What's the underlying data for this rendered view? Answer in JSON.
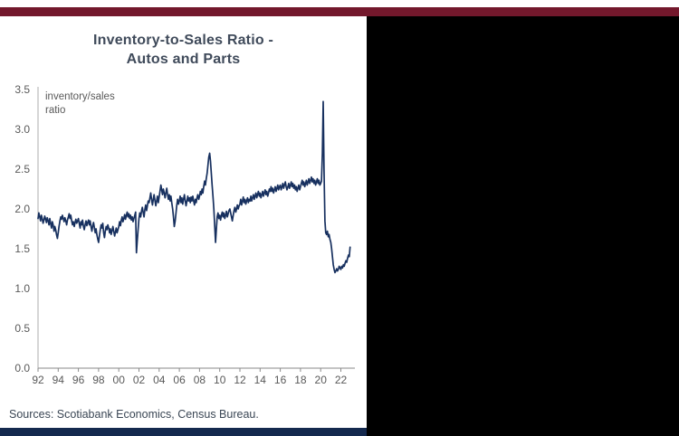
{
  "chart": {
    "title_line1": "Inventory-to-Sales Ratio -",
    "title_line2": "Autos and Parts",
    "annotation_line1": "inventory/sales",
    "annotation_line2": "ratio",
    "source": "Sources: Scotiabank Economics, Census Bureau.",
    "colors": {
      "line": "#17305F",
      "title": "#3F4A5A",
      "axis_text": "#595959",
      "y_axis_line": "#ADADAD",
      "x_axis_line": "#8A8A8A",
      "top_bar": "#73182C",
      "bottom_bar": "#14294E",
      "panel_bg": "#FFFFFF",
      "outside_bg": "#000000",
      "annotation_text": "#595959",
      "source_text": "#3A4654"
    }
  },
  "chart_data": {
    "type": "line",
    "title": "Inventory-to-Sales Ratio - Autos and Parts",
    "xlabel": "",
    "ylabel": "inventory/sales ratio",
    "legend": [],
    "grid": false,
    "ylim": [
      0,
      3.5
    ],
    "xlim": [
      1992,
      2023.3
    ],
    "y_ticks": [
      0,
      0.5,
      1,
      1.5,
      2,
      2.5,
      3,
      3.5
    ],
    "x_tick_years": [
      1992,
      1994,
      1996,
      1998,
      2000,
      2002,
      2004,
      2006,
      2008,
      2010,
      2012,
      2014,
      2016,
      2018,
      2020,
      2022
    ],
    "x_tick_labels": [
      "92",
      "94",
      "96",
      "98",
      "00",
      "02",
      "04",
      "06",
      "08",
      "10",
      "12",
      "14",
      "16",
      "18",
      "20",
      "22"
    ],
    "x_start_year": 1992,
    "x_frequency": "monthly",
    "values": [
      1.88,
      1.95,
      1.9,
      1.85,
      1.92,
      1.88,
      1.82,
      1.86,
      1.91,
      1.87,
      1.83,
      1.89,
      1.85,
      1.8,
      1.88,
      1.82,
      1.76,
      1.84,
      1.8,
      1.72,
      1.78,
      1.74,
      1.68,
      1.63,
      1.7,
      1.78,
      1.85,
      1.9,
      1.87,
      1.92,
      1.88,
      1.84,
      1.89,
      1.85,
      1.8,
      1.86,
      1.9,
      1.94,
      1.88,
      1.92,
      1.85,
      1.8,
      1.84,
      1.78,
      1.83,
      1.87,
      1.82,
      1.85,
      1.88,
      1.82,
      1.76,
      1.84,
      1.8,
      1.86,
      1.78,
      1.74,
      1.8,
      1.85,
      1.79,
      1.83,
      1.86,
      1.8,
      1.85,
      1.78,
      1.72,
      1.79,
      1.83,
      1.76,
      1.7,
      1.75,
      1.68,
      1.62,
      1.58,
      1.66,
      1.74,
      1.8,
      1.76,
      1.82,
      1.7,
      1.64,
      1.72,
      1.78,
      1.74,
      1.8,
      1.76,
      1.7,
      1.75,
      1.68,
      1.73,
      1.78,
      1.72,
      1.66,
      1.71,
      1.76,
      1.7,
      1.74,
      1.78,
      1.84,
      1.79,
      1.86,
      1.9,
      1.84,
      1.88,
      1.93,
      1.87,
      1.92,
      1.96,
      1.9,
      1.94,
      1.88,
      1.92,
      1.86,
      1.9,
      1.84,
      1.88,
      1.92,
      1.96,
      1.45,
      1.6,
      1.75,
      1.88,
      1.95,
      1.9,
      1.97,
      2.02,
      1.96,
      1.9,
      1.99,
      2.05,
      1.98,
      2.04,
      2.1,
      2.08,
      2.14,
      2.2,
      2.12,
      2.05,
      2.12,
      2.18,
      2.1,
      2.04,
      2.1,
      2.16,
      2.08,
      2.15,
      2.22,
      2.3,
      2.24,
      2.18,
      2.25,
      2.2,
      2.14,
      2.2,
      2.26,
      2.18,
      2.12,
      2.18,
      2.1,
      2.16,
      2.08,
      2.0,
      1.9,
      1.78,
      1.85,
      1.95,
      2.05,
      2.12,
      2.06,
      2.1,
      2.16,
      2.08,
      2.14,
      2.06,
      2.12,
      2.18,
      2.1,
      2.04,
      2.1,
      2.16,
      2.1,
      2.14,
      2.08,
      2.15,
      2.1,
      2.16,
      2.1,
      2.05,
      2.12,
      2.08,
      2.14,
      2.18,
      2.12,
      2.16,
      2.22,
      2.18,
      2.25,
      2.2,
      2.28,
      2.35,
      2.3,
      2.38,
      2.45,
      2.55,
      2.65,
      2.7,
      2.6,
      2.45,
      2.3,
      2.15,
      2.0,
      1.8,
      1.58,
      1.75,
      1.9,
      1.95,
      1.88,
      1.92,
      1.86,
      1.92,
      1.96,
      1.9,
      1.95,
      1.88,
      1.92,
      1.97,
      1.9,
      1.94,
      1.98,
      2.0,
      1.95,
      1.9,
      1.85,
      1.92,
      1.98,
      2.02,
      1.96,
      2.0,
      2.05,
      2.0,
      2.04,
      2.06,
      2.12,
      2.05,
      2.1,
      2.15,
      2.08,
      2.12,
      2.06,
      2.1,
      2.14,
      2.08,
      2.12,
      2.1,
      2.16,
      2.1,
      2.14,
      2.18,
      2.12,
      2.16,
      2.2,
      2.14,
      2.18,
      2.22,
      2.16,
      2.2,
      2.14,
      2.18,
      2.22,
      2.16,
      2.2,
      2.24,
      2.18,
      2.22,
      2.16,
      2.2,
      2.25,
      2.22,
      2.28,
      2.22,
      2.26,
      2.2,
      2.24,
      2.28,
      2.22,
      2.26,
      2.3,
      2.24,
      2.28,
      2.3,
      2.24,
      2.28,
      2.32,
      2.26,
      2.3,
      2.34,
      2.28,
      2.24,
      2.28,
      2.32,
      2.26,
      2.3,
      2.34,
      2.28,
      2.32,
      2.26,
      2.3,
      2.24,
      2.28,
      2.22,
      2.26,
      2.3,
      2.24,
      2.28,
      2.32,
      2.36,
      2.3,
      2.34,
      2.28,
      2.32,
      2.36,
      2.3,
      2.34,
      2.38,
      2.32,
      2.36,
      2.4,
      2.34,
      2.38,
      2.32,
      2.36,
      2.3,
      2.34,
      2.38,
      2.32,
      2.36,
      2.3,
      2.32,
      2.35,
      2.7,
      3.35,
      2.5,
      1.85,
      1.7,
      1.68,
      1.72,
      1.65,
      1.68,
      1.62,
      1.58,
      1.5,
      1.4,
      1.3,
      1.24,
      1.2,
      1.22,
      1.25,
      1.22,
      1.24,
      1.28,
      1.26,
      1.24,
      1.28,
      1.26,
      1.3,
      1.28,
      1.32,
      1.35,
      1.33,
      1.38,
      1.42,
      1.4,
      1.52
    ]
  }
}
